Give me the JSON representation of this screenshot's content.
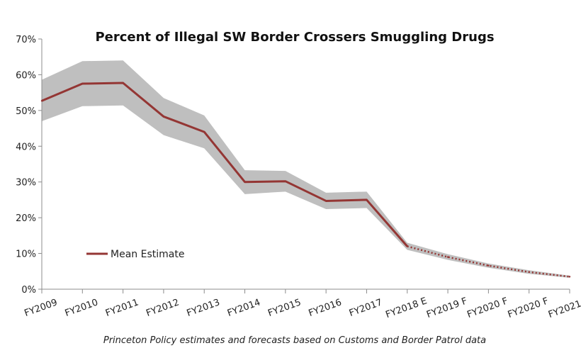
{
  "chart_data": {
    "type": "line",
    "title": "Percent of Illegal SW Border Crossers Smuggling Drugs",
    "categories": [
      "FY2009",
      "FY2010",
      "FY2011",
      "FY2012",
      "FY2013",
      "FY2014",
      "FY2015",
      "FY2016",
      "FY2017",
      "FY2018 E",
      "FY2019 F",
      "FY2020 F",
      "FY2020 F",
      "FY2021 F"
    ],
    "y_ticks": [
      "0%",
      "10%",
      "20%",
      "30%",
      "40%",
      "50%",
      "60%",
      "70%"
    ],
    "ylim": [
      0,
      70
    ],
    "series": [
      {
        "name": "Mean Estimate",
        "values": [
          52.7,
          57.5,
          57.7,
          48.3,
          44.0,
          30.0,
          30.2,
          24.7,
          25.0,
          12.0,
          9.0,
          6.6,
          4.8,
          3.5
        ],
        "solid_through_index": 9,
        "color": "#943634"
      }
    ],
    "band": {
      "upper": [
        58.6,
        63.8,
        64.0,
        53.5,
        48.6,
        33.3,
        33.1,
        27.0,
        27.3,
        13.0,
        9.8,
        7.2,
        5.3,
        3.8
      ],
      "lower": [
        47.0,
        51.2,
        51.4,
        43.1,
        39.4,
        26.6,
        27.3,
        22.4,
        22.7,
        11.0,
        8.2,
        6.0,
        4.3,
        3.2
      ],
      "color": "#bfbfbf"
    },
    "legend": {
      "label": "Mean Estimate",
      "placement": "lower-left"
    },
    "grid": false
  },
  "source_note": "Princeton Policy estimates and forecasts based on Customs and Border Patrol data"
}
